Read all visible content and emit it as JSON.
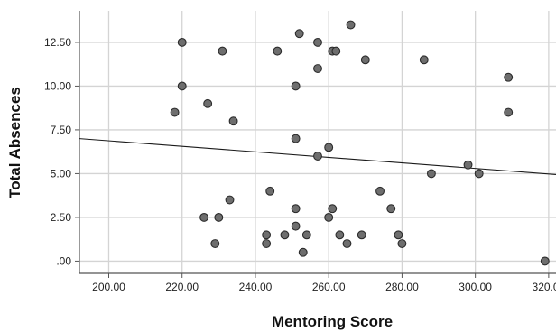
{
  "chart_data": {
    "type": "scatter",
    "title": "",
    "xlabel": "Mentoring Score",
    "ylabel": "Total Absences",
    "xlim": [
      192,
      322
    ],
    "ylim": [
      -0.7,
      14.3
    ],
    "x_ticks": [
      200,
      220,
      240,
      260,
      280,
      300,
      320
    ],
    "x_tick_labels": [
      "200.00",
      "220.00",
      "240.00",
      "260.00",
      "280.00",
      "300.00",
      "320.00"
    ],
    "y_ticks": [
      0,
      2.5,
      5,
      7.5,
      10,
      12.5
    ],
    "y_tick_labels": [
      ".00",
      "2.50",
      "5.00",
      "7.50",
      "10.00",
      "12.50"
    ],
    "grid": true,
    "legend": "none",
    "colors": {
      "point_fill": "#6e6e6e",
      "point_stroke": "#2b2b2b",
      "grid": "#d4d4d4",
      "axis": "#555555",
      "fit_line": "#1a1a1a"
    },
    "series": [
      {
        "points": [
          [
            220,
            12.5
          ],
          [
            220,
            10
          ],
          [
            218,
            8.5
          ],
          [
            227,
            9
          ],
          [
            231,
            12
          ],
          [
            234,
            8
          ],
          [
            233,
            3.5
          ],
          [
            226,
            2.5
          ],
          [
            230,
            2.5
          ],
          [
            229,
            1
          ],
          [
            244,
            4
          ],
          [
            243,
            1.5
          ],
          [
            243,
            1
          ],
          [
            248,
            1.5
          ],
          [
            253,
            0.5
          ],
          [
            254,
            1.5
          ],
          [
            251,
            3
          ],
          [
            251,
            2
          ],
          [
            246,
            12
          ],
          [
            252,
            13
          ],
          [
            257,
            12.5
          ],
          [
            261,
            12
          ],
          [
            262,
            12
          ],
          [
            266,
            13.5
          ],
          [
            270,
            11.5
          ],
          [
            257,
            11
          ],
          [
            251,
            10
          ],
          [
            251,
            7
          ],
          [
            257,
            6
          ],
          [
            260,
            6.5
          ],
          [
            261,
            3
          ],
          [
            260,
            2.5
          ],
          [
            263,
            1.5
          ],
          [
            265,
            1
          ],
          [
            269,
            1.5
          ],
          [
            274,
            4
          ],
          [
            277,
            3
          ],
          [
            279,
            1.5
          ],
          [
            280,
            1
          ],
          [
            286,
            11.5
          ],
          [
            288,
            5
          ],
          [
            298,
            5.5
          ],
          [
            301,
            5
          ],
          [
            309,
            10.5
          ],
          [
            309,
            8.5
          ],
          [
            319,
            0
          ]
        ]
      }
    ],
    "fit_line": {
      "x": [
        192,
        322
      ],
      "y": [
        7.0,
        4.95
      ]
    }
  }
}
